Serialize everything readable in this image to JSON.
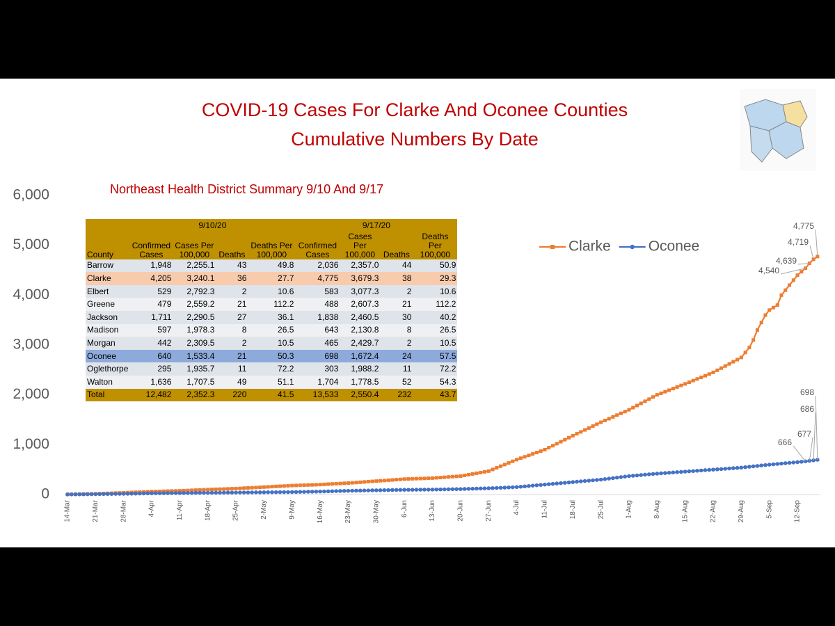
{
  "chart_data": {
    "type": "line",
    "title": "COVID-19 Cases For Clarke And Oconee Counties",
    "subtitle": "Cumulative Numbers By Date",
    "categories": [
      "14-Mar",
      null,
      null,
      null,
      null,
      null,
      null,
      "21-Mar",
      null,
      null,
      null,
      null,
      null,
      null,
      "28-Mar",
      null,
      null,
      null,
      null,
      null,
      null,
      "4-Apr",
      null,
      null,
      null,
      null,
      null,
      null,
      "11-Apr",
      null,
      null,
      null,
      null,
      null,
      null,
      "18-Apr",
      null,
      null,
      null,
      null,
      null,
      null,
      "25-Apr",
      null,
      null,
      null,
      null,
      null,
      null,
      "2-May",
      null,
      null,
      null,
      null,
      null,
      null,
      "9-May",
      null,
      null,
      null,
      null,
      null,
      null,
      "16-May",
      null,
      null,
      null,
      null,
      null,
      null,
      "23-May",
      null,
      null,
      null,
      null,
      null,
      null,
      "30-May",
      null,
      null,
      null,
      null,
      null,
      null,
      "6-Jun",
      null,
      null,
      null,
      null,
      null,
      null,
      "13-Jun",
      null,
      null,
      null,
      null,
      null,
      null,
      "20-Jun",
      null,
      null,
      null,
      null,
      null,
      null,
      "27-Jun",
      null,
      null,
      null,
      null,
      null,
      null,
      "4-Jul",
      null,
      null,
      null,
      null,
      null,
      null,
      "11-Jul",
      null,
      null,
      null,
      null,
      null,
      null,
      "18-Jul",
      null,
      null,
      null,
      null,
      null,
      null,
      "25-Jul",
      null,
      null,
      null,
      null,
      null,
      null,
      "1-Aug",
      null,
      null,
      null,
      null,
      null,
      null,
      "8-Aug",
      null,
      null,
      null,
      null,
      null,
      null,
      "15-Aug",
      null,
      null,
      null,
      null,
      null,
      null,
      "22-Aug",
      null,
      null,
      null,
      null,
      null,
      null,
      "29-Aug",
      null,
      null,
      null,
      null,
      null,
      null,
      "5-Sep",
      null,
      null,
      null,
      null,
      null,
      null,
      "12-Sep",
      null,
      null,
      null,
      null,
      null
    ],
    "series": [
      {
        "name": "Clarke",
        "color": "#ed7d31",
        "marker": "square",
        "values": [
          5,
          6,
          8,
          9,
          11,
          12,
          14,
          15,
          18,
          21,
          24,
          26,
          29,
          32,
          35,
          39,
          42,
          46,
          49,
          53,
          56,
          60,
          62,
          64,
          66,
          69,
          71,
          73,
          75,
          79,
          82,
          86,
          89,
          93,
          96,
          100,
          103,
          106,
          109,
          111,
          114,
          117,
          120,
          124,
          129,
          133,
          137,
          141,
          146,
          150,
          154,
          159,
          163,
          167,
          171,
          176,
          180,
          183,
          186,
          189,
          191,
          194,
          197,
          200,
          204,
          209,
          213,
          217,
          221,
          226,
          230,
          236,
          241,
          247,
          253,
          259,
          264,
          270,
          276,
          281,
          287,
          293,
          299,
          304,
          310,
          313,
          316,
          319,
          321,
          324,
          327,
          330,
          336,
          341,
          347,
          353,
          359,
          364,
          370,
          384,
          399,
          413,
          427,
          441,
          456,
          470,
          503,
          536,
          569,
          601,
          634,
          667,
          700,
          729,
          757,
          786,
          814,
          843,
          871,
          900,
          940,
          980,
          1020,
          1060,
          1100,
          1140,
          1180,
          1219,
          1257,
          1296,
          1334,
          1373,
          1411,
          1450,
          1486,
          1521,
          1557,
          1593,
          1629,
          1664,
          1700,
          1743,
          1786,
          1829,
          1871,
          1914,
          1957,
          2000,
          2031,
          2063,
          2094,
          2126,
          2157,
          2189,
          2220,
          2253,
          2286,
          2319,
          2351,
          2384,
          2417,
          2450,
          2493,
          2536,
          2579,
          2621,
          2664,
          2707,
          2750,
          2850,
          2950,
          3100,
          3300,
          3450,
          3600,
          3700,
          3750,
          3800,
          4000,
          4100,
          4200,
          4300,
          4400,
          4470,
          4540,
          4639,
          4719,
          4775
        ],
        "value_labels": [
          null,
          null,
          null,
          null,
          null,
          null,
          null,
          null,
          null,
          null,
          null,
          null,
          null,
          null,
          null,
          null,
          null,
          null,
          null,
          null,
          null,
          null,
          null,
          null,
          null,
          null,
          null,
          null,
          null,
          null,
          null,
          null,
          null,
          null,
          null,
          null,
          null,
          null,
          null,
          null,
          null,
          null,
          null,
          null,
          null,
          null,
          null,
          null,
          null,
          null,
          null,
          null,
          null,
          null,
          null,
          null,
          null,
          null,
          null,
          null,
          null,
          null,
          null,
          null,
          null,
          null,
          null,
          null,
          null,
          null,
          null,
          null,
          null,
          null,
          null,
          null,
          null,
          null,
          null,
          null,
          null,
          null,
          null,
          null,
          null,
          null,
          null,
          null,
          null,
          null,
          null,
          null,
          null,
          null,
          null,
          null,
          null,
          null,
          null,
          null,
          null,
          null,
          null,
          null,
          null,
          null,
          null,
          null,
          null,
          null,
          null,
          null,
          null,
          null,
          null,
          null,
          null,
          null,
          null,
          null,
          null,
          null,
          null,
          null,
          null,
          null,
          null,
          null,
          null,
          null,
          null,
          null,
          null,
          null,
          null,
          null,
          null,
          null,
          null,
          null,
          null,
          null,
          null,
          null,
          null,
          null,
          null,
          null,
          null,
          null,
          null,
          null,
          null,
          null,
          null,
          null,
          null,
          null,
          null,
          null,
          null,
          null,
          null,
          null,
          null,
          null,
          null,
          null,
          null,
          null,
          null,
          null,
          null,
          null,
          null,
          null,
          null,
          null,
          null,
          null,
          null,
          null,
          null,
          null,
          "4,540",
          "4,639",
          "4,719",
          "4,775"
        ]
      },
      {
        "name": "Oconee",
        "color": "#4472c4",
        "marker": "circle",
        "values": [
          2,
          3,
          4,
          5,
          5,
          6,
          7,
          8,
          9,
          10,
          11,
          12,
          13,
          14,
          15,
          16,
          18,
          19,
          21,
          22,
          24,
          25,
          26,
          26,
          27,
          28,
          29,
          29,
          30,
          31,
          31,
          32,
          33,
          34,
          34,
          35,
          36,
          36,
          37,
          38,
          39,
          39,
          40,
          41,
          41,
          42,
          43,
          44,
          44,
          45,
          46,
          46,
          47,
          48,
          49,
          49,
          50,
          51,
          53,
          54,
          56,
          57,
          59,
          60,
          62,
          64,
          66,
          69,
          71,
          73,
          75,
          76,
          78,
          79,
          81,
          82,
          84,
          85,
          86,
          88,
          89,
          91,
          92,
          94,
          95,
          96,
          96,
          97,
          98,
          99,
          99,
          100,
          101,
          103,
          104,
          106,
          107,
          109,
          110,
          112,
          114,
          116,
          119,
          121,
          123,
          125,
          129,
          132,
          136,
          139,
          143,
          146,
          150,
          157,
          164,
          171,
          179,
          186,
          193,
          200,
          207,
          214,
          221,
          229,
          236,
          243,
          250,
          257,
          264,
          271,
          279,
          286,
          293,
          300,
          310,
          320,
          330,
          340,
          350,
          360,
          370,
          377,
          384,
          391,
          399,
          406,
          413,
          420,
          426,
          431,
          437,
          443,
          449,
          454,
          460,
          466,
          471,
          477,
          483,
          489,
          494,
          500,
          506,
          511,
          517,
          523,
          529,
          534,
          540,
          549,
          557,
          566,
          574,
          583,
          591,
          600,
          607,
          614,
          621,
          629,
          636,
          643,
          650,
          658,
          666,
          677,
          686,
          698
        ],
        "value_labels": [
          null,
          null,
          null,
          null,
          null,
          null,
          null,
          null,
          null,
          null,
          null,
          null,
          null,
          null,
          null,
          null,
          null,
          null,
          null,
          null,
          null,
          null,
          null,
          null,
          null,
          null,
          null,
          null,
          null,
          null,
          null,
          null,
          null,
          null,
          null,
          null,
          null,
          null,
          null,
          null,
          null,
          null,
          null,
          null,
          null,
          null,
          null,
          null,
          null,
          null,
          null,
          null,
          null,
          null,
          null,
          null,
          null,
          null,
          null,
          null,
          null,
          null,
          null,
          null,
          null,
          null,
          null,
          null,
          null,
          null,
          null,
          null,
          null,
          null,
          null,
          null,
          null,
          null,
          null,
          null,
          null,
          null,
          null,
          null,
          null,
          null,
          null,
          null,
          null,
          null,
          null,
          null,
          null,
          null,
          null,
          null,
          null,
          null,
          null,
          null,
          null,
          null,
          null,
          null,
          null,
          null,
          null,
          null,
          null,
          null,
          null,
          null,
          null,
          null,
          null,
          null,
          null,
          null,
          null,
          null,
          null,
          null,
          null,
          null,
          null,
          null,
          null,
          null,
          null,
          null,
          null,
          null,
          null,
          null,
          null,
          null,
          null,
          null,
          null,
          null,
          null,
          null,
          null,
          null,
          null,
          null,
          null,
          null,
          null,
          null,
          null,
          null,
          null,
          null,
          null,
          null,
          null,
          null,
          null,
          null,
          null,
          null,
          null,
          null,
          null,
          null,
          null,
          null,
          null,
          null,
          null,
          null,
          null,
          null,
          null,
          null,
          null,
          null,
          null,
          null,
          null,
          null,
          null,
          null,
          "666",
          "677",
          "686",
          "698"
        ]
      }
    ],
    "ylim": [
      0,
      6000
    ],
    "yticks": [
      0,
      {
        "value": 1000,
        "label": "1,000"
      },
      {
        "value": 2000,
        "label": "2,000"
      },
      {
        "value": 3000,
        "label": "3,000"
      },
      {
        "value": 4000,
        "label": "4,000"
      },
      {
        "value": 5000,
        "label": "5,000"
      },
      {
        "value": 6000,
        "label": "6,000"
      }
    ],
    "grid": false,
    "legend": "top-right"
  },
  "table": {
    "title": "Northeast Health District Summary 9/10 And 9/17",
    "groups": [
      "9/10/20",
      "9/17/20"
    ],
    "columns": [
      "County",
      "Confirmed Cases",
      "Cases Per 100,000",
      "Deaths",
      "Deaths Per 100,000",
      "Confirmed Cases",
      "Cases Per 100,000",
      "Deaths",
      "Deaths Per 100,000"
    ],
    "rows": [
      [
        "Barrow",
        "1,948",
        "2,255.1",
        "43",
        "49.8",
        "2,036",
        "2,357.0",
        "44",
        "50.9"
      ],
      [
        "Clarke",
        "4,205",
        "3,240.1",
        "36",
        "27.7",
        "4,775",
        "3,679.3",
        "38",
        "29.3"
      ],
      [
        "Elbert",
        "529",
        "2,792.3",
        "2",
        "10.6",
        "583",
        "3,077.3",
        "2",
        "10.6"
      ],
      [
        "Greene",
        "479",
        "2,559.2",
        "21",
        "112.2",
        "488",
        "2,607.3",
        "21",
        "112.2"
      ],
      [
        "Jackson",
        "1,711",
        "2,290.5",
        "27",
        "36.1",
        "1,838",
        "2,460.5",
        "30",
        "40.2"
      ],
      [
        "Madison",
        "597",
        "1,978.3",
        "8",
        "26.5",
        "643",
        "2,130.8",
        "8",
        "26.5"
      ],
      [
        "Morgan",
        "442",
        "2,309.5",
        "2",
        "10.5",
        "465",
        "2,429.7",
        "2",
        "10.5"
      ],
      [
        "Oconee",
        "640",
        "1,533.4",
        "21",
        "50.3",
        "698",
        "1,672.4",
        "24",
        "57.5"
      ],
      [
        "Oglethorpe",
        "295",
        "1,935.7",
        "11",
        "72.2",
        "303",
        "1,988.2",
        "11",
        "72.2"
      ],
      [
        "Walton",
        "1,636",
        "1,707.5",
        "49",
        "51.1",
        "1,704",
        "1,778.5",
        "52",
        "54.3"
      ],
      [
        "Total",
        "12,482",
        "2,352.3",
        "220",
        "41.5",
        "13,533",
        "2,550.4",
        "232",
        "43.7"
      ]
    ]
  }
}
